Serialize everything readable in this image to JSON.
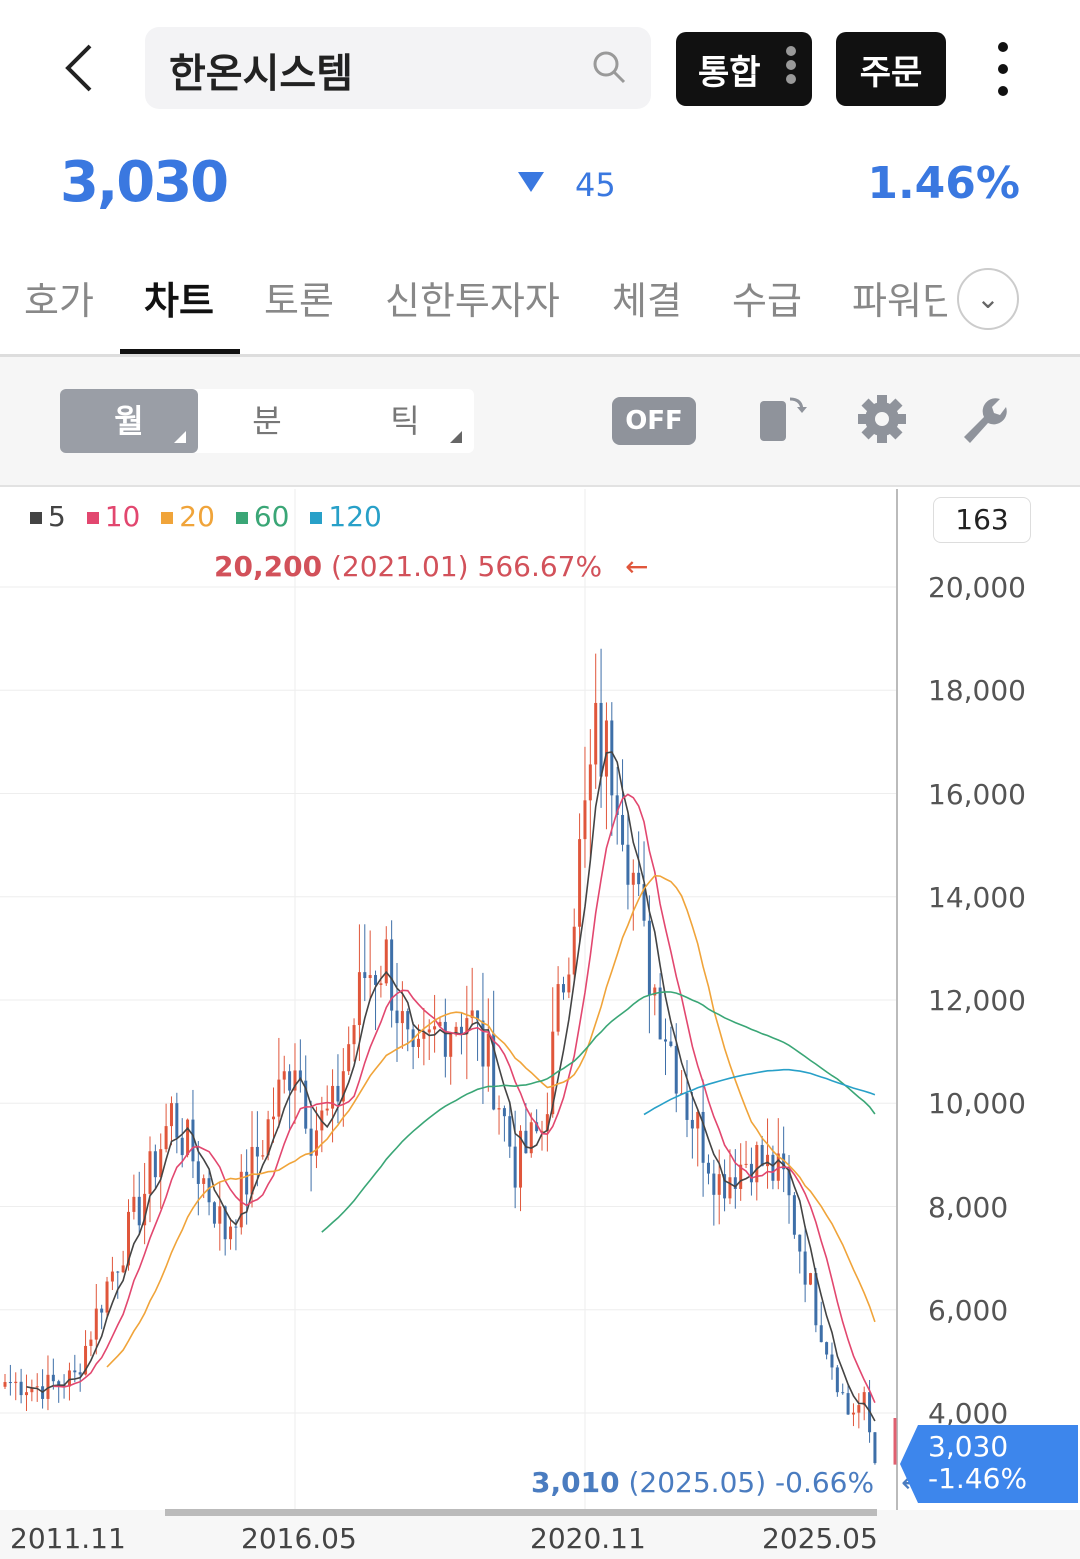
{
  "header": {
    "back_icon": "chevron-left-icon",
    "stock_name": "한온시스템",
    "search_icon": "search-icon",
    "integrated_label": "통합",
    "order_label": "주문",
    "more_icon": "more-vertical-icon"
  },
  "quote": {
    "price": "3,030",
    "direction": "down",
    "change": "45",
    "change_pct": "1.46%",
    "color": "#3a78e0"
  },
  "tabs": [
    {
      "label": "호가"
    },
    {
      "label": "차트",
      "active": true
    },
    {
      "label": "토론"
    },
    {
      "label": "신한투자자"
    },
    {
      "label": "체결"
    },
    {
      "label": "수급"
    },
    {
      "label": "파워딘"
    }
  ],
  "toolbar": {
    "periods": [
      {
        "label": "월",
        "active": true
      },
      {
        "label": "분"
      },
      {
        "label": "틱"
      }
    ],
    "off_label": "OFF",
    "icons": [
      "rotate-icon",
      "gear-icon",
      "wrench-icon"
    ]
  },
  "chart_data": {
    "type": "candlestick",
    "interval": "monthly",
    "legend": [
      {
        "label": "5",
        "color": "#444444"
      },
      {
        "label": "10",
        "color": "#e2476f"
      },
      {
        "label": "20",
        "color": "#f0a43a"
      },
      {
        "label": "60",
        "color": "#3aa676"
      },
      {
        "label": "120",
        "color": "#28a0c8"
      }
    ],
    "volume_box": "163",
    "high_annotation": {
      "price": "20,200",
      "date": "(2021.01)",
      "pct": "566.67%"
    },
    "low_annotation": {
      "price": "3,010",
      "date": "(2025.05)",
      "pct": "-0.66%"
    },
    "current_tag": {
      "price": "3,030",
      "pct": "-1.46%"
    },
    "y_ticks": [
      "20,000",
      "18,000",
      "16,000",
      "14,000",
      "12,000",
      "10,000",
      "8,000",
      "6,000",
      "4,000"
    ],
    "x_ticks": [
      "2011.11",
      "2016.05",
      "2020.11",
      "2025.05"
    ],
    "ylim": [
      3000,
      20500
    ],
    "up_color": "#e0563b",
    "down_color": "#3e6fa8",
    "close_keypoints": [
      [
        "2011.11",
        4600
      ],
      [
        "2012.06",
        4500
      ],
      [
        "2012.12",
        4700
      ],
      [
        "2013.06",
        6500
      ],
      [
        "2013.12",
        8000
      ],
      [
        "2014.06",
        9800
      ],
      [
        "2014.12",
        8500
      ],
      [
        "2015.04",
        7500
      ],
      [
        "2015.10",
        9000
      ],
      [
        "2016.05",
        11000
      ],
      [
        "2016.08",
        9500
      ],
      [
        "2016.12",
        9800
      ],
      [
        "2017.06",
        12500
      ],
      [
        "2017.10",
        12800
      ],
      [
        "2018.03",
        10500
      ],
      [
        "2018.08",
        11500
      ],
      [
        "2019.01",
        11800
      ],
      [
        "2019.06",
        10500
      ],
      [
        "2019.10",
        8800
      ],
      [
        "2020.03",
        9500
      ],
      [
        "2020.09",
        14000
      ],
      [
        "2021.01",
        17000
      ],
      [
        "2021.05",
        16500
      ],
      [
        "2021.10",
        13000
      ],
      [
        "2022.02",
        11500
      ],
      [
        "2022.06",
        10000
      ],
      [
        "2022.12",
        8500
      ],
      [
        "2023.06",
        9000
      ],
      [
        "2023.12",
        8500
      ],
      [
        "2024.06",
        6000
      ],
      [
        "2024.12",
        4000
      ],
      [
        "2025.03",
        4200
      ],
      [
        "2025.05",
        3030
      ]
    ]
  }
}
